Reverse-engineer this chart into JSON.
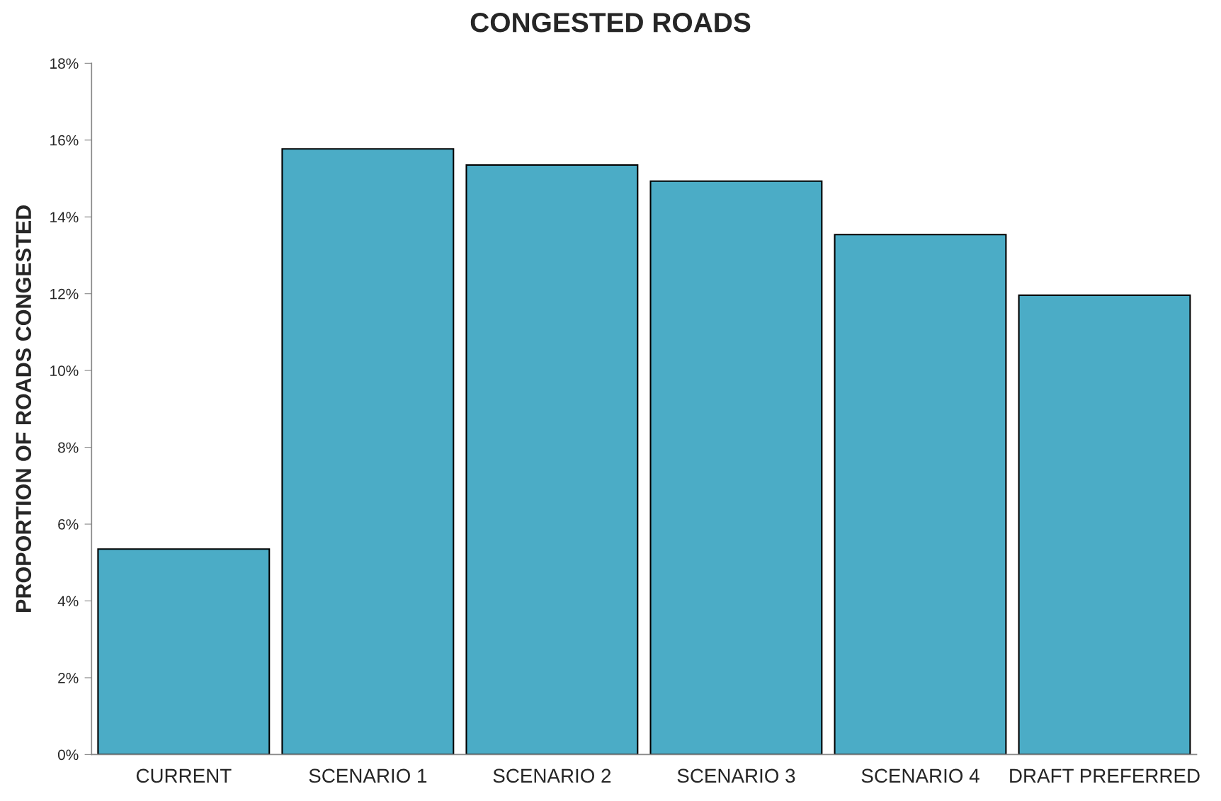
{
  "chart_data": {
    "type": "bar",
    "title": "CONGESTED ROADS",
    "ylabel": "PROPORTION OF ROADS CONGESTED",
    "categories": [
      "CURRENT",
      "SCENARIO 1",
      "SCENARIO 2",
      "SCENARIO 3",
      "SCENARIO 4",
      "DRAFT PREFERRED"
    ],
    "values": [
      5.35,
      15.77,
      15.35,
      14.93,
      13.54,
      11.96
    ],
    "color": "#4bacc6",
    "ylim": [
      0,
      18
    ],
    "yticks": [
      {
        "value": 0,
        "label": "0%"
      },
      {
        "value": 2,
        "label": "2%"
      },
      {
        "value": 4,
        "label": "4%"
      },
      {
        "value": 6,
        "label": "6%"
      },
      {
        "value": 8,
        "label": "8%"
      },
      {
        "value": 10,
        "label": "10%"
      },
      {
        "value": 12,
        "label": "12%"
      },
      {
        "value": 14,
        "label": "14%"
      },
      {
        "value": 16,
        "label": "16%"
      },
      {
        "value": 18,
        "label": "18%"
      }
    ],
    "grid": false
  }
}
